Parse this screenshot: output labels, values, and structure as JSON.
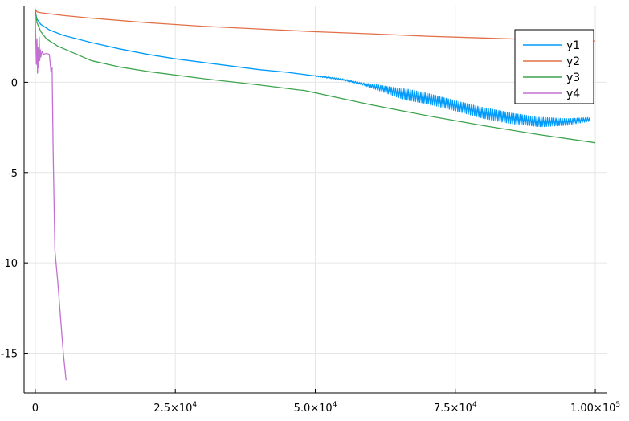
{
  "chart_data": {
    "type": "line",
    "title": "",
    "xlabel": "",
    "ylabel": "",
    "xlim": [
      -2000,
      102000
    ],
    "ylim": [
      -17.2,
      4.2
    ],
    "grid": true,
    "legend_position": "top-right",
    "x_ticks": [
      {
        "value": 0,
        "base": "0",
        "exp": ""
      },
      {
        "value": 25000,
        "base": "2.5×10",
        "exp": "4"
      },
      {
        "value": 50000,
        "base": "5.0×10",
        "exp": "4"
      },
      {
        "value": 75000,
        "base": "7.5×10",
        "exp": "4"
      },
      {
        "value": 100000,
        "base": "1.00×10",
        "exp": "5"
      }
    ],
    "y_ticks": [
      {
        "value": 0,
        "label": "0"
      },
      {
        "value": -5,
        "label": "-5"
      },
      {
        "value": -10,
        "label": "-10"
      },
      {
        "value": -15,
        "label": "-15"
      }
    ],
    "series": [
      {
        "name": "y1",
        "color": "#009AFA",
        "x": [
          0,
          300,
          1000,
          2500,
          5000,
          10000,
          15000,
          20000,
          25000,
          30000,
          35000,
          40000,
          45000,
          50000,
          55000,
          60000,
          65000,
          70000,
          75000,
          80000,
          85000,
          90000,
          95000,
          99000
        ],
        "y": [
          3.9,
          3.5,
          3.2,
          2.9,
          2.6,
          2.2,
          1.85,
          1.55,
          1.3,
          1.1,
          0.9,
          0.7,
          0.55,
          0.35,
          0.15,
          -0.2,
          -0.6,
          -0.9,
          -1.3,
          -1.7,
          -2.0,
          -2.2,
          -2.2,
          -2.05
        ],
        "noise_from": 50000,
        "noise_to": 99000,
        "noise_amp": [
          0.05,
          0.1,
          0.6,
          0.55,
          0.6,
          0.5,
          0.2
        ]
      },
      {
        "name": "y2",
        "color": "#E26F46",
        "x": [
          0,
          300,
          1000,
          5000,
          10000,
          20000,
          30000,
          40000,
          50000,
          60000,
          70000,
          80000,
          90000,
          100000
        ],
        "y": [
          4.05,
          3.9,
          3.85,
          3.7,
          3.55,
          3.3,
          3.1,
          2.95,
          2.8,
          2.68,
          2.55,
          2.45,
          2.35,
          2.28
        ]
      },
      {
        "name": "y3",
        "color": "#3EA44E",
        "x": [
          0,
          300,
          1000,
          2000,
          4000,
          7000,
          10000,
          15000,
          20000,
          30000,
          40000,
          47000,
          48000,
          60000,
          70000,
          80000,
          90000,
          100000
        ],
        "y": [
          4.0,
          3.3,
          2.8,
          2.4,
          2.0,
          1.6,
          1.2,
          0.85,
          0.6,
          0.2,
          -0.15,
          -0.42,
          -0.45,
          -1.25,
          -1.85,
          -2.4,
          -2.9,
          -3.35
        ]
      },
      {
        "name": "y4",
        "color": "#C271D2",
        "x": [
          0,
          100,
          200,
          300,
          400,
          500,
          600,
          700,
          800,
          900,
          1000,
          1200,
          1500,
          2000,
          2500,
          2800,
          3000,
          3200,
          3500,
          4000,
          4500,
          5000,
          5500
        ],
        "y": [
          3.6,
          2.2,
          1.0,
          2.4,
          0.5,
          1.9,
          0.8,
          2.5,
          1.2,
          1.8,
          1.4,
          1.7,
          1.55,
          1.6,
          1.55,
          0.6,
          0.8,
          -4.0,
          -9.3,
          -11.0,
          -13.0,
          -15.0,
          -16.5
        ]
      }
    ]
  }
}
